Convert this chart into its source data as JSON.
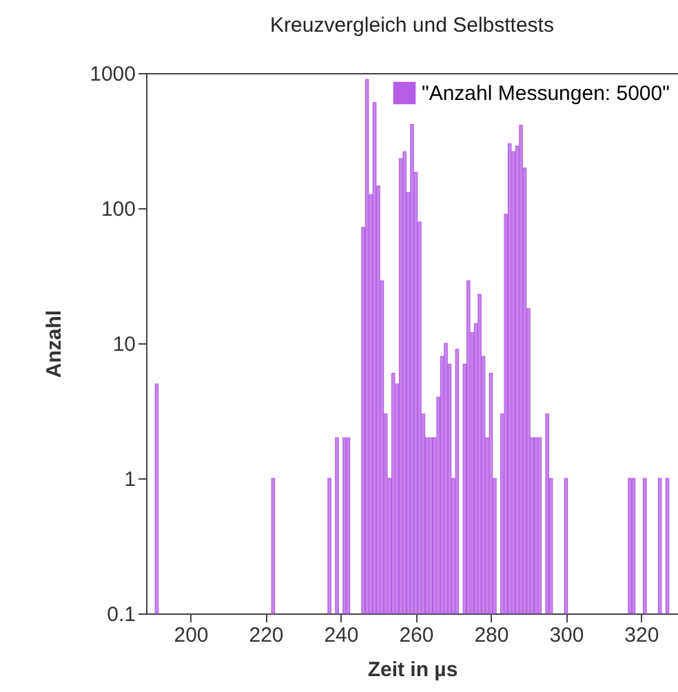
{
  "chart_data": {
    "type": "bar",
    "title": "Kreuzvergleich und Selbsttests",
    "xlabel": "Zeit in µs",
    "ylabel": "Anzahl",
    "x": [
      191,
      222,
      237,
      239,
      241,
      242,
      246,
      247,
      248,
      249,
      250,
      251,
      252,
      253,
      254,
      255,
      256,
      257,
      258,
      259,
      260,
      261,
      262,
      263,
      264,
      265,
      266,
      267,
      268,
      269,
      270,
      271,
      273,
      274,
      275,
      276,
      277,
      278,
      279,
      280,
      281,
      283,
      284,
      285,
      286,
      287,
      288,
      289,
      290,
      291,
      292,
      293,
      295,
      296,
      300,
      317,
      318,
      321,
      325,
      327
    ],
    "series": [
      {
        "name": "\"Anzahl Messungen: 5000\"",
        "color": "#b45ee6",
        "values": [
          5,
          1,
          1,
          2,
          2,
          2,
          72,
          895,
          126,
          604,
          146,
          29,
          3,
          1,
          6,
          5,
          233,
          262,
          130,
          416,
          184,
          79,
          3,
          2,
          2,
          2,
          4,
          8,
          10,
          7,
          1,
          9,
          7,
          29,
          12,
          14,
          23,
          8,
          2,
          6,
          1,
          3,
          90,
          300,
          262,
          288,
          410,
          198,
          18,
          2,
          2,
          2,
          3,
          1,
          1,
          1,
          1,
          1,
          1,
          1
        ]
      }
    ],
    "xlim": [
      190,
      328
    ],
    "xticks": [
      200,
      220,
      240,
      260,
      280,
      300,
      320
    ],
    "ylim": [
      0.1,
      1000
    ],
    "yticks": [
      0.1,
      1,
      10,
      100,
      1000
    ],
    "log": true,
    "legend": "top right"
  }
}
